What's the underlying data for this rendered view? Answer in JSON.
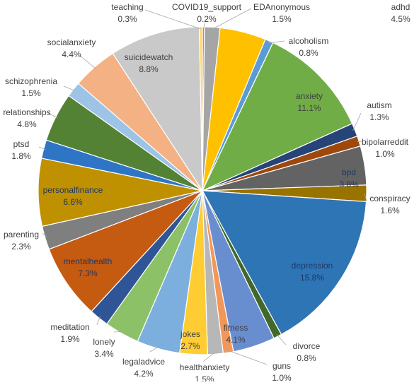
{
  "chart_data": {
    "type": "pie",
    "title": "",
    "legend": "none",
    "slices": [
      {
        "name": "COVID19_support",
        "pct": "0.2%",
        "value": 0.2,
        "color": "#ed7d31",
        "label": "outside"
      },
      {
        "name": "EDAnonymous",
        "pct": "1.5%",
        "value": 1.5,
        "color": "#a5a5a5",
        "label": "outside"
      },
      {
        "name": "adhd",
        "pct": "4.5%",
        "value": 4.5,
        "color": "#ffc000",
        "label": "inside"
      },
      {
        "name": "alcoholism",
        "pct": "0.8%",
        "value": 0.8,
        "color": "#5b9bd5",
        "label": "outside"
      },
      {
        "name": "anxiety",
        "pct": "11.1%",
        "value": 11.1,
        "color": "#70ad47",
        "label": "inside"
      },
      {
        "name": "autism",
        "pct": "1.3%",
        "value": 1.3,
        "color": "#264478",
        "label": "outside"
      },
      {
        "name": "bipolarreddit",
        "pct": "1.0%",
        "value": 1.0,
        "color": "#9e480e",
        "label": "outside"
      },
      {
        "name": "bpd",
        "pct": "3.8%",
        "value": 3.8,
        "color": "#636363",
        "label": "inside"
      },
      {
        "name": "conspiracy",
        "pct": "1.6%",
        "value": 1.6,
        "color": "#997300",
        "label": "outside"
      },
      {
        "name": "depression",
        "pct": "15.8%",
        "value": 15.8,
        "color": "#2e75b6",
        "label": "inside"
      },
      {
        "name": "divorce",
        "pct": "0.8%",
        "value": 0.8,
        "color": "#43682b",
        "label": "outside"
      },
      {
        "name": "fitness",
        "pct": "4.1%",
        "value": 4.1,
        "color": "#698ed0",
        "label": "inside"
      },
      {
        "name": "guns",
        "pct": "1.0%",
        "value": 1.0,
        "color": "#f1975a",
        "label": "outside"
      },
      {
        "name": "healthanxiety",
        "pct": "1.5%",
        "value": 1.5,
        "color": "#b7b7b7",
        "label": "outside"
      },
      {
        "name": "jokes",
        "pct": "2.7%",
        "value": 2.7,
        "color": "#ffcd33",
        "label": "inside"
      },
      {
        "name": "legaladvice",
        "pct": "4.2%",
        "value": 4.2,
        "color": "#7cafdd",
        "label": "outside"
      },
      {
        "name": "lonely",
        "pct": "3.4%",
        "value": 3.4,
        "color": "#8cc168",
        "label": "outside"
      },
      {
        "name": "meditation",
        "pct": "1.9%",
        "value": 1.9,
        "color": "#2f5597",
        "label": "outside"
      },
      {
        "name": "mentalhealth",
        "pct": "7.3%",
        "value": 7.3,
        "color": "#c55a11",
        "label": "inside"
      },
      {
        "name": "parenting",
        "pct": "2.3%",
        "value": 2.3,
        "color": "#7f7f7f",
        "label": "outside"
      },
      {
        "name": "personalfinance",
        "pct": "6.6%",
        "value": 6.6,
        "color": "#bf9000",
        "label": "inside"
      },
      {
        "name": "ptsd",
        "pct": "1.8%",
        "value": 1.8,
        "color": "#2e75c6",
        "label": "outside"
      },
      {
        "name": "relationships",
        "pct": "4.8%",
        "value": 4.8,
        "color": "#548235",
        "label": "outside"
      },
      {
        "name": "schizophrenia",
        "pct": "1.5%",
        "value": 1.5,
        "color": "#9dc3e6",
        "label": "outside"
      },
      {
        "name": "socialanxiety",
        "pct": "4.4%",
        "value": 4.4,
        "color": "#f4b183",
        "label": "outside"
      },
      {
        "name": "suicidewatch",
        "pct": "8.8%",
        "value": 8.8,
        "color": "#c9c9c9",
        "label": "inside"
      },
      {
        "name": "teaching",
        "pct": "0.3%",
        "value": 0.3,
        "color": "#ffd966",
        "label": "outside"
      }
    ]
  }
}
